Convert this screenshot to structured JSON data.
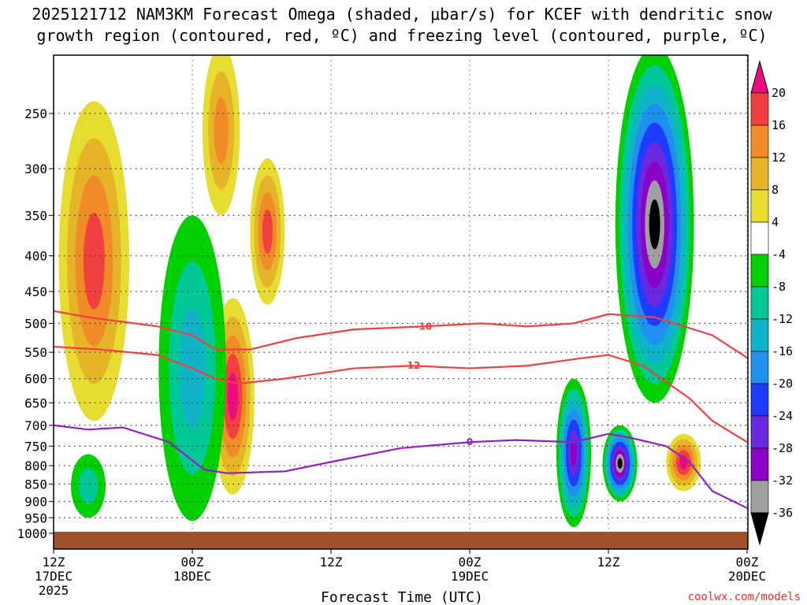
{
  "title_line1": "2025121712 NAM3KM Forecast Omega (shaded, μbar/s) for KCEF with dendritic snow",
  "title_line2": "growth region (contoured, red, ºC) and freezing level (contoured, purple, ºC)",
  "credit": "coolwx.com/models",
  "chart_data": {
    "type": "heatmap",
    "title": "2025121712 NAM3KM Forecast Omega (shaded, μbar/s) for KCEF with dendritic snow growth region (contoured, red, ºC) and freezing level (contoured, purple, ºC)",
    "xlabel": "Forecast Time (UTC)",
    "ylabel": "",
    "x_range_hours": [
      0,
      60
    ],
    "y_range_hpa": [
      1030,
      200
    ],
    "x_ticks": [
      {
        "hour": 0,
        "label": "12Z",
        "sub": "17DEC",
        "sub2": "2025"
      },
      {
        "hour": 12,
        "label": "00Z",
        "sub": "18DEC",
        "sub2": ""
      },
      {
        "hour": 24,
        "label": "12Z",
        "sub": "",
        "sub2": ""
      },
      {
        "hour": 36,
        "label": "00Z",
        "sub": "19DEC",
        "sub2": ""
      },
      {
        "hour": 48,
        "label": "12Z",
        "sub": "",
        "sub2": ""
      },
      {
        "hour": 60,
        "label": "00Z",
        "sub": "20DEC",
        "sub2": ""
      }
    ],
    "y_ticks": [
      250,
      300,
      350,
      400,
      450,
      500,
      550,
      600,
      650,
      700,
      750,
      800,
      850,
      900,
      950,
      1000
    ],
    "colorbar": {
      "levels": [
        -36,
        -32,
        -28,
        -24,
        -20,
        -16,
        -12,
        -8,
        -4,
        4,
        8,
        12,
        16,
        20
      ],
      "colors": [
        "#000000",
        "#a0a0a0",
        "#8c00c8",
        "#6a28e0",
        "#1e3cff",
        "#2090f0",
        "#10b4c8",
        "#00c896",
        "#00d000",
        "#ffffff",
        "#e6dc32",
        "#e6b428",
        "#f08c28",
        "#f04040",
        "#ec0c80"
      ],
      "labels": [
        "20",
        "16",
        "12",
        "8",
        "4",
        "-4",
        "-8",
        "-12",
        "-16",
        "-20",
        "-24",
        "-28",
        "-32",
        "-36"
      ]
    },
    "omega_features": [
      {
        "hour": 3.5,
        "p_top": 240,
        "p_bot": 690,
        "peak": 16,
        "sign": "positive"
      },
      {
        "hour": 15.5,
        "p_top": 460,
        "p_bot": 880,
        "peak": 20,
        "sign": "positive"
      },
      {
        "hour": 18.5,
        "p_top": 290,
        "p_bot": 470,
        "peak": 16,
        "sign": "positive"
      },
      {
        "hour": 14.5,
        "p_top": 200,
        "p_bot": 350,
        "peak": 12,
        "sign": "positive"
      },
      {
        "hour": 12,
        "p_top": 350,
        "p_bot": 960,
        "peak": -12,
        "sign": "negative"
      },
      {
        "hour": 3,
        "p_top": 770,
        "p_bot": 950,
        "peak": -8,
        "sign": "negative"
      },
      {
        "hour": 45,
        "p_top": 600,
        "p_bot": 980,
        "peak": -28,
        "sign": "negative"
      },
      {
        "hour": 52,
        "p_top": 200,
        "p_bot": 650,
        "peak": -36,
        "sign": "negative"
      },
      {
        "hour": 49,
        "p_top": 700,
        "p_bot": 900,
        "peak": -36,
        "sign": "negative"
      },
      {
        "hour": 54.5,
        "p_top": 720,
        "p_bot": 870,
        "peak": 20,
        "sign": "positive"
      }
    ],
    "series": [
      {
        "name": "-18",
        "points": [
          [
            0,
            480
          ],
          [
            3,
            490
          ],
          [
            9,
            505
          ],
          [
            12,
            520
          ],
          [
            14,
            545
          ],
          [
            17,
            545
          ],
          [
            21,
            525
          ],
          [
            26,
            510
          ],
          [
            32,
            505
          ],
          [
            37,
            500
          ],
          [
            41,
            505
          ],
          [
            45,
            500
          ],
          [
            48,
            485
          ],
          [
            52,
            490
          ],
          [
            57,
            520
          ],
          [
            60,
            560
          ]
        ]
      },
      {
        "name": "-12",
        "points": [
          [
            0,
            540
          ],
          [
            4,
            545
          ],
          [
            9,
            555
          ],
          [
            12,
            580
          ],
          [
            14,
            600
          ],
          [
            16,
            610
          ],
          [
            20,
            600
          ],
          [
            26,
            580
          ],
          [
            31,
            575
          ],
          [
            36,
            580
          ],
          [
            41,
            575
          ],
          [
            46,
            560
          ],
          [
            48,
            555
          ],
          [
            51,
            575
          ],
          [
            55,
            640
          ],
          [
            57,
            690
          ],
          [
            60,
            740
          ]
        ]
      },
      {
        "name": "0",
        "points": [
          [
            0,
            700
          ],
          [
            3,
            710
          ],
          [
            6,
            705
          ],
          [
            10,
            740
          ],
          [
            13,
            810
          ],
          [
            15,
            820
          ],
          [
            20,
            815
          ],
          [
            24,
            790
          ],
          [
            30,
            755
          ],
          [
            36,
            740
          ],
          [
            40,
            735
          ],
          [
            45,
            740
          ],
          [
            48,
            720
          ],
          [
            50,
            730
          ],
          [
            53,
            750
          ],
          [
            55,
            790
          ],
          [
            57,
            870
          ],
          [
            60,
            920
          ]
        ]
      }
    ]
  }
}
